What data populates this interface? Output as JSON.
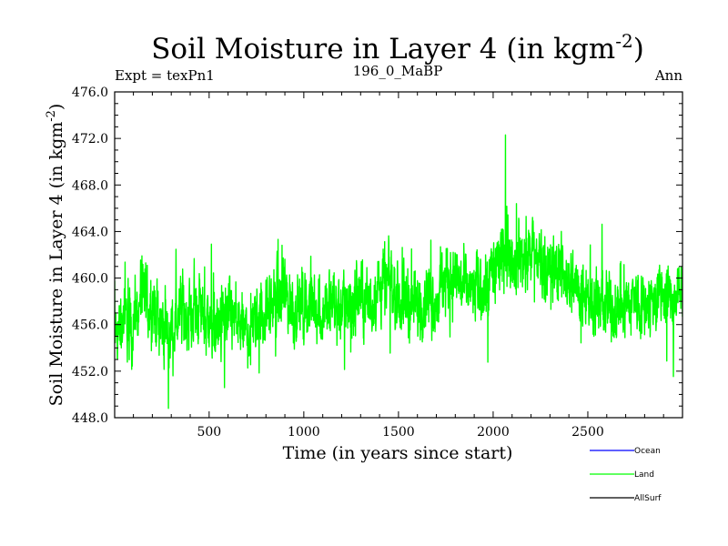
{
  "chart_data": {
    "type": "line",
    "title": "Soil Moisture in Layer 4 (in kgm",
    "title_sup": "-2",
    "title_end": ")",
    "subtitle_left": "Expt = texPn1",
    "subtitle_center": "196_0_MaBP",
    "subtitle_right": "Ann",
    "xlabel": "Time (in years since start)",
    "ylabel": "Soil Moisture in Layer 4 (in kgm",
    "ylabel_sup": "-2",
    "ylabel_end": ")",
    "xlim": [
      1,
      3000
    ],
    "ylim": [
      448.0,
      476.0
    ],
    "xticks": [
      500,
      1000,
      1500,
      2000,
      2500
    ],
    "xtick_labels": [
      "500",
      "1000",
      "1500",
      "2000",
      "2500"
    ],
    "yticks": [
      448,
      452,
      456,
      460,
      464,
      468,
      472,
      476
    ],
    "ytick_labels": [
      "448.0",
      "452.0",
      "456.0",
      "460.0",
      "464.0",
      "468.0",
      "472.0",
      "476.0"
    ],
    "grid": false,
    "legend_position": "bottom-right",
    "series": [
      {
        "name": "Ocean",
        "color": "#0000ff",
        "x": [],
        "values": []
      },
      {
        "name": "Land",
        "color": "#00ff00",
        "x": [
          1,
          50,
          100,
          150,
          200,
          250,
          300,
          350,
          400,
          450,
          500,
          550,
          600,
          650,
          700,
          750,
          800,
          850,
          900,
          950,
          1000,
          1050,
          1100,
          1150,
          1200,
          1250,
          1300,
          1350,
          1400,
          1450,
          1500,
          1550,
          1600,
          1650,
          1700,
          1750,
          1800,
          1850,
          1900,
          1950,
          2000,
          2050,
          2100,
          2150,
          2200,
          2250,
          2300,
          2350,
          2400,
          2450,
          2500,
          2550,
          2600,
          2650,
          2700,
          2750,
          2800,
          2850,
          2900,
          2950,
          3000
        ],
        "values": [
          455.0,
          456.5,
          455.8,
          458.2,
          457.5,
          456.0,
          455.2,
          457.0,
          456.8,
          457.8,
          456.2,
          455.6,
          456.8,
          456.0,
          455.2,
          456.5,
          457.2,
          458.0,
          458.8,
          457.2,
          457.6,
          458.0,
          456.8,
          458.2,
          457.5,
          457.8,
          458.6,
          457.4,
          459.4,
          459.8,
          458.6,
          458.0,
          457.4,
          458.6,
          458.0,
          459.6,
          460.2,
          459.0,
          458.8,
          459.4,
          460.6,
          461.6,
          462.0,
          461.6,
          462.4,
          461.6,
          460.8,
          460.6,
          459.6,
          459.0,
          458.6,
          458.0,
          457.4,
          457.8,
          457.6,
          458.2,
          457.8,
          458.0,
          458.4,
          458.2,
          458.0
        ],
        "max": 472.3,
        "min": 448.8
      },
      {
        "name": "AllSurf",
        "color": "#000000",
        "x": [],
        "values": []
      }
    ]
  }
}
